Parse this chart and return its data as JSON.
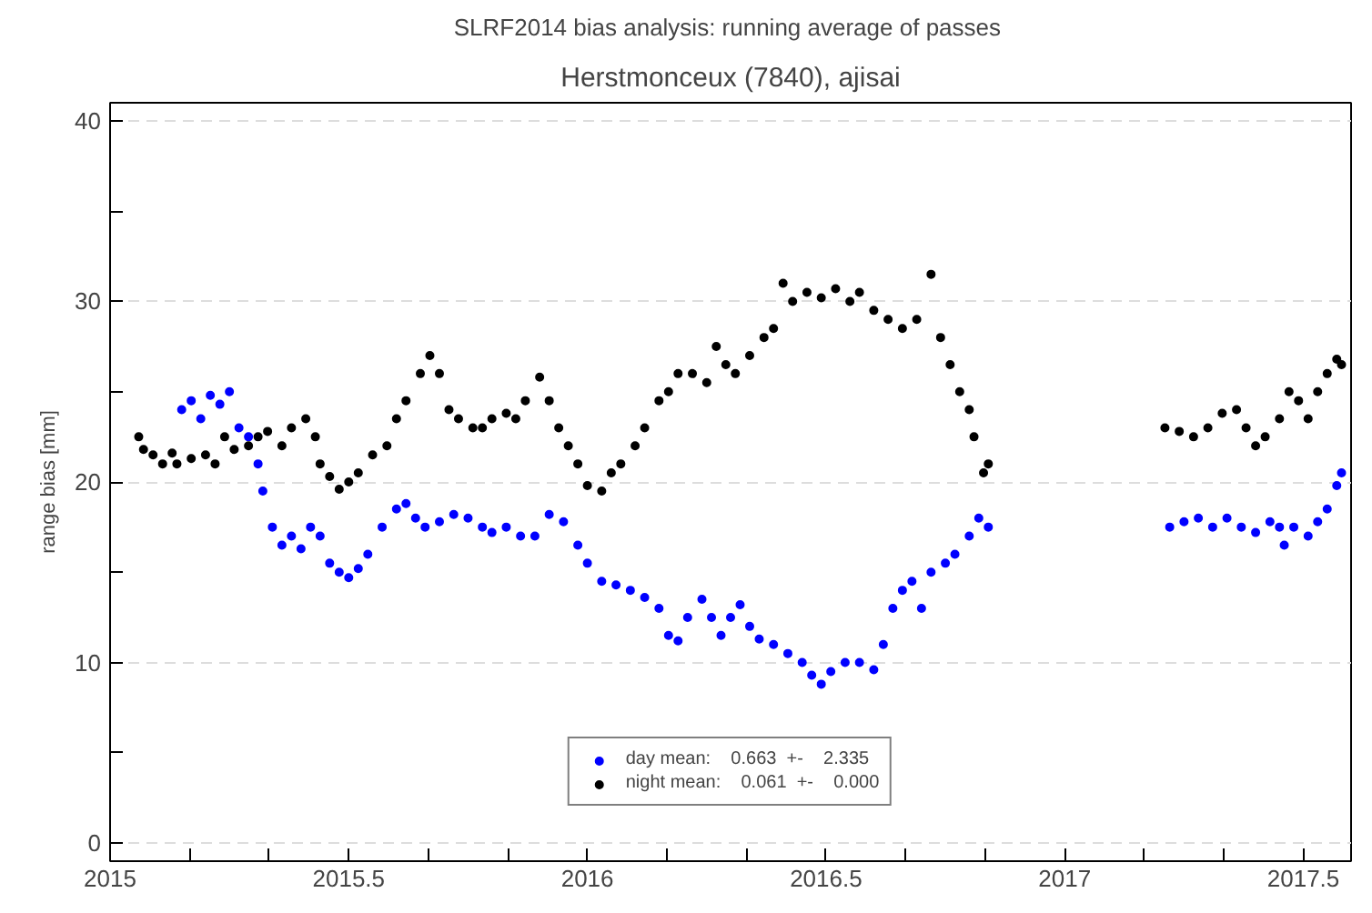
{
  "chart_data": {
    "type": "scatter",
    "title": "SLRF2014 bias analysis: running average of  passes",
    "subtitle": "Herstmonceux (7840), ajisai",
    "ylabel": "range bias [mm]",
    "xlim": [
      2015,
      2017.6
    ],
    "ylim": [
      -1,
      41
    ],
    "xticks": [
      2015,
      {
        "value": 2015.1667,
        "label": null
      },
      {
        "value": 2015.3333,
        "label": null
      },
      2015.5,
      {
        "value": 2015.6667,
        "label": null
      },
      {
        "value": 2015.8333,
        "label": null
      },
      2016,
      {
        "value": 2016.1667,
        "label": null
      },
      {
        "value": 2016.3333,
        "label": null
      },
      2016.5,
      {
        "value": 2016.6667,
        "label": null
      },
      {
        "value": 2016.8333,
        "label": null
      },
      2017,
      {
        "value": 2017.1667,
        "label": null
      },
      {
        "value": 2017.3333,
        "label": null
      },
      2017.5
    ],
    "yticks": [
      0,
      {
        "value": 5,
        "label": null
      },
      10,
      {
        "value": 15,
        "label": null
      },
      20,
      {
        "value": 25,
        "label": null
      },
      30,
      {
        "value": 35,
        "label": null
      },
      40
    ],
    "grid": "y",
    "legend": "bottom",
    "marker": "circle",
    "series": [
      {
        "name": "day mean:    0.663  +-    2.335",
        "color": "#0000ff",
        "x": [
          2015.15,
          2015.17,
          2015.19,
          2015.21,
          2015.23,
          2015.25,
          2015.27,
          2015.29,
          2015.31,
          2015.32,
          2015.34,
          2015.36,
          2015.38,
          2015.4,
          2015.42,
          2015.44,
          2015.46,
          2015.48,
          2015.5,
          2015.52,
          2015.54,
          2015.57,
          2015.6,
          2015.62,
          2015.64,
          2015.66,
          2015.69,
          2015.72,
          2015.75,
          2015.78,
          2015.8,
          2015.83,
          2015.86,
          2015.89,
          2015.92,
          2015.95,
          2015.98,
          2016.0,
          2016.03,
          2016.06,
          2016.09,
          2016.12,
          2016.15,
          2016.17,
          2016.19,
          2016.21,
          2016.24,
          2016.26,
          2016.28,
          2016.3,
          2016.32,
          2016.34,
          2016.36,
          2016.39,
          2016.42,
          2016.45,
          2016.47,
          2016.49,
          2016.51,
          2016.54,
          2016.57,
          2016.6,
          2016.62,
          2016.64,
          2016.66,
          2016.68,
          2016.7,
          2016.72,
          2016.75,
          2016.77,
          2016.8,
          2016.82,
          2016.84,
          2017.22,
          2017.25,
          2017.28,
          2017.31,
          2017.34,
          2017.37,
          2017.4,
          2017.43,
          2017.45,
          2017.46,
          2017.48,
          2017.51,
          2017.53,
          2017.55,
          2017.57,
          2017.58
        ],
        "values": [
          24.0,
          24.5,
          23.5,
          24.8,
          24.3,
          25.0,
          23.0,
          22.5,
          21.0,
          19.5,
          17.5,
          16.5,
          17.0,
          16.3,
          17.5,
          17.0,
          15.5,
          15.0,
          14.7,
          15.2,
          16.0,
          17.5,
          18.5,
          18.8,
          18.0,
          17.5,
          17.8,
          18.2,
          18.0,
          17.5,
          17.2,
          17.5,
          17.0,
          17.0,
          18.2,
          17.8,
          16.5,
          15.5,
          14.5,
          14.3,
          14.0,
          13.6,
          13.0,
          11.5,
          11.2,
          12.5,
          13.5,
          12.5,
          11.5,
          12.5,
          13.2,
          12.0,
          11.3,
          11.0,
          10.5,
          10.0,
          9.3,
          8.8,
          9.5,
          10.0,
          10.0,
          9.6,
          11.0,
          13.0,
          14.0,
          14.5,
          13.0,
          15.0,
          15.5,
          16.0,
          17.0,
          18.0,
          17.5,
          17.5,
          17.8,
          18.0,
          17.5,
          18.0,
          17.5,
          17.2,
          17.8,
          17.5,
          16.5,
          17.5,
          17.0,
          17.8,
          18.5,
          19.8,
          20.5
        ]
      },
      {
        "name": "night mean:    0.061  +-    0.000",
        "color": "#000000",
        "x": [
          2015.06,
          2015.07,
          2015.09,
          2015.11,
          2015.13,
          2015.14,
          2015.17,
          2015.2,
          2015.22,
          2015.24,
          2015.26,
          2015.29,
          2015.31,
          2015.33,
          2015.36,
          2015.38,
          2015.41,
          2015.43,
          2015.44,
          2015.46,
          2015.48,
          2015.5,
          2015.52,
          2015.55,
          2015.58,
          2015.6,
          2015.62,
          2015.65,
          2015.67,
          2015.69,
          2015.71,
          2015.73,
          2015.76,
          2015.78,
          2015.8,
          2015.83,
          2015.85,
          2015.87,
          2015.9,
          2015.92,
          2015.94,
          2015.96,
          2015.98,
          2016.0,
          2016.03,
          2016.05,
          2016.07,
          2016.1,
          2016.12,
          2016.15,
          2016.17,
          2016.19,
          2016.22,
          2016.25,
          2016.27,
          2016.29,
          2016.31,
          2016.34,
          2016.37,
          2016.39,
          2016.41,
          2016.43,
          2016.46,
          2016.49,
          2016.52,
          2016.55,
          2016.57,
          2016.6,
          2016.63,
          2016.66,
          2016.69,
          2016.72,
          2016.74,
          2016.76,
          2016.78,
          2016.8,
          2016.81,
          2016.83,
          2016.84,
          2017.21,
          2017.24,
          2017.27,
          2017.3,
          2017.33,
          2017.36,
          2017.38,
          2017.4,
          2017.42,
          2017.45,
          2017.47,
          2017.49,
          2017.51,
          2017.53,
          2017.55,
          2017.57,
          2017.58
        ],
        "values": [
          22.5,
          21.8,
          21.5,
          21.0,
          21.6,
          21.0,
          21.3,
          21.5,
          21.0,
          22.5,
          21.8,
          22.0,
          22.5,
          22.8,
          22.0,
          23.0,
          23.5,
          22.5,
          21.0,
          20.3,
          19.6,
          20.0,
          20.5,
          21.5,
          22.0,
          23.5,
          24.5,
          26.0,
          27.0,
          26.0,
          24.0,
          23.5,
          23.0,
          23.0,
          23.5,
          23.8,
          23.5,
          24.5,
          25.8,
          24.5,
          23.0,
          22.0,
          21.0,
          19.8,
          19.5,
          20.5,
          21.0,
          22.0,
          23.0,
          24.5,
          25.0,
          26.0,
          26.0,
          25.5,
          27.5,
          26.5,
          26.0,
          27.0,
          28.0,
          28.5,
          31.0,
          30.0,
          30.5,
          30.2,
          30.7,
          30.0,
          30.5,
          29.5,
          29.0,
          28.5,
          29.0,
          31.5,
          28.0,
          26.5,
          25.0,
          24.0,
          22.5,
          20.5,
          21.0,
          23.0,
          22.8,
          22.5,
          23.0,
          23.8,
          24.0,
          23.0,
          22.0,
          22.5,
          23.5,
          25.0,
          24.5,
          23.5,
          25.0,
          26.0,
          26.8,
          26.5
        ]
      }
    ]
  }
}
